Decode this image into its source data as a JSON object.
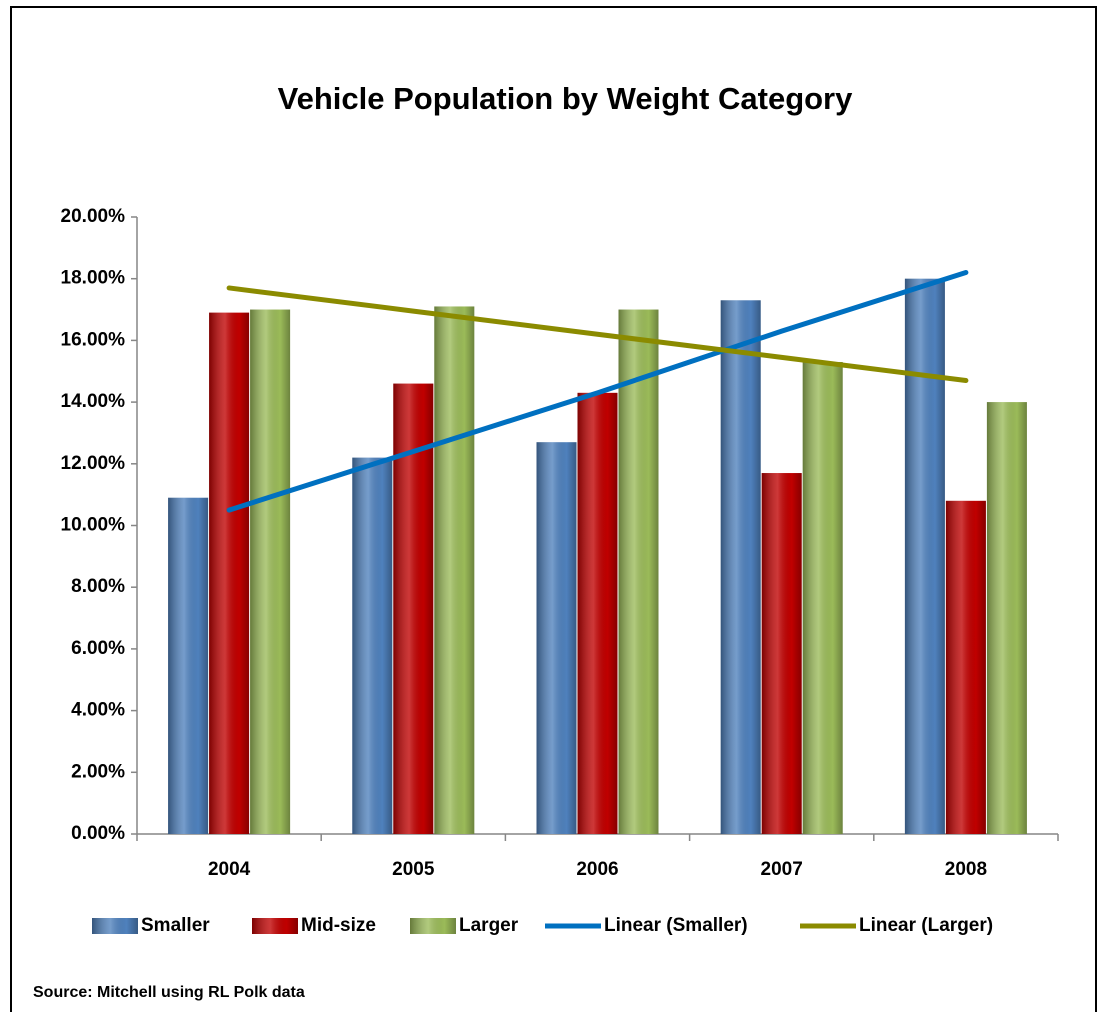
{
  "chart_data": {
    "type": "bar",
    "title": "Vehicle Population by Weight Category",
    "categories": [
      "2004",
      "2005",
      "2006",
      "2007",
      "2008"
    ],
    "series": [
      {
        "name": "Smaller",
        "color": "#4f81bd",
        "values": [
          10.9,
          12.2,
          12.7,
          17.3,
          18.0
        ]
      },
      {
        "name": "Mid-size",
        "color": "#c00000",
        "values": [
          16.9,
          14.6,
          14.3,
          11.7,
          10.8
        ]
      },
      {
        "name": "Larger",
        "color": "#9bbb59",
        "values": [
          17.0,
          17.1,
          17.0,
          15.3,
          14.0
        ]
      },
      {
        "name": "Linear (Smaller)",
        "color": "#0070c0",
        "type": "line",
        "values": [
          10.5,
          12.4,
          14.3,
          16.3,
          18.2
        ]
      },
      {
        "name": "Linear (Larger)",
        "color": "#8b8b00",
        "type": "line",
        "values": [
          17.7,
          16.95,
          16.2,
          15.45,
          14.7
        ]
      }
    ],
    "ylim": [
      0,
      20
    ],
    "yticks": [
      {
        "value": 0,
        "label": "0.00%"
      },
      {
        "value": 2,
        "label": "2.00%"
      },
      {
        "value": 4,
        "label": "4.00%"
      },
      {
        "value": 6,
        "label": "6.00%"
      },
      {
        "value": 8,
        "label": "8.00%"
      },
      {
        "value": 10,
        "label": "10.00%"
      },
      {
        "value": 12,
        "label": "12.00%"
      },
      {
        "value": 14,
        "label": "14.00%"
      },
      {
        "value": 16,
        "label": "16.00%"
      },
      {
        "value": 18,
        "label": "18.00%"
      },
      {
        "value": 20,
        "label": "20.00%"
      }
    ],
    "grid": false,
    "legend": "bottom",
    "source": "Source:  Mitchell using RL Polk data"
  }
}
